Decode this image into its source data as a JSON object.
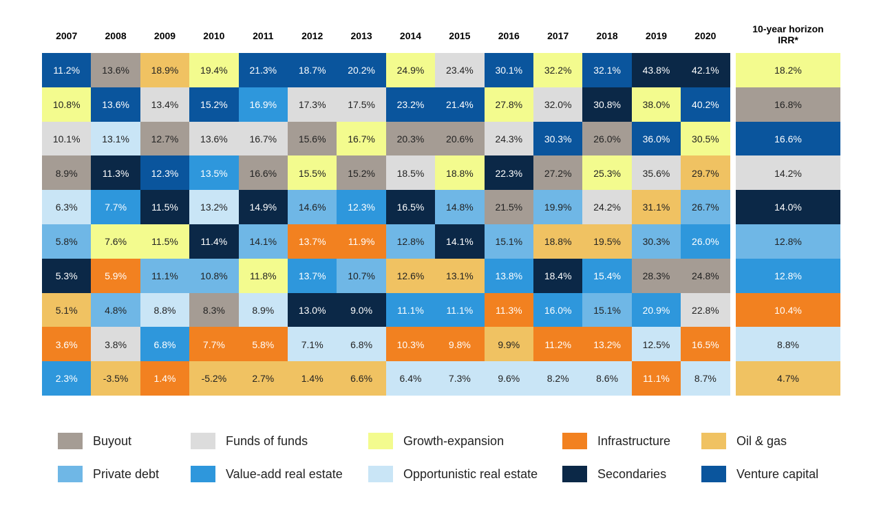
{
  "chart_data": {
    "type": "quilt",
    "categories": [
      "2007",
      "2008",
      "2009",
      "2010",
      "2011",
      "2012",
      "2013",
      "2014",
      "2015",
      "2016",
      "2017",
      "2018",
      "2019",
      "2020",
      "10-year horizon IRR*"
    ],
    "legend": [
      {
        "name": "Buyout",
        "color": "#a59c94"
      },
      {
        "name": "Funds of funds",
        "color": "#dcdcdc"
      },
      {
        "name": "Growth-expansion",
        "color": "#f3fb8e"
      },
      {
        "name": "Infrastructure",
        "color": "#f28120"
      },
      {
        "name": "Oil & gas",
        "color": "#f0c262"
      },
      {
        "name": "Private debt",
        "color": "#6fb7e6"
      },
      {
        "name": "Value-add real estate",
        "color": "#2e97dc"
      },
      {
        "name": "Opportunistic real estate",
        "color": "#c9e5f6"
      },
      {
        "name": "Secondaries",
        "color": "#0b2847"
      },
      {
        "name": "Venture capital",
        "color": "#0a559d"
      }
    ],
    "columns": [
      {
        "values": [
          11.2,
          10.8,
          10.1,
          8.9,
          6.3,
          5.8,
          5.3,
          5.1,
          3.6,
          2.3
        ],
        "value_labels": [
          "11.2%",
          "10.8%",
          "10.1%",
          "8.9%",
          "6.3%",
          "5.8%",
          "5.3%",
          "5.1%",
          "3.6%",
          "2.3%"
        ],
        "strategy": [
          9,
          2,
          1,
          0,
          7,
          5,
          8,
          4,
          3,
          6
        ]
      },
      {
        "values": [
          13.6,
          13.6,
          13.1,
          11.3,
          7.7,
          7.6,
          5.9,
          4.8,
          3.8,
          -3.5
        ],
        "value_labels": [
          "13.6%",
          "13.6%",
          "13.1%",
          "11.3%",
          "7.7%",
          "7.6%",
          "5.9%",
          "4.8%",
          "3.8%",
          "-3.5%"
        ],
        "strategy": [
          0,
          9,
          7,
          8,
          6,
          2,
          3,
          5,
          1,
          4
        ]
      },
      {
        "values": [
          18.9,
          13.4,
          12.7,
          12.3,
          11.5,
          11.5,
          11.1,
          8.8,
          6.8,
          1.4
        ],
        "value_labels": [
          "18.9%",
          "13.4%",
          "12.7%",
          "12.3%",
          "11.5%",
          "11.5%",
          "11.1%",
          "8.8%",
          "6.8%",
          "1.4%"
        ],
        "strategy": [
          4,
          1,
          0,
          9,
          8,
          2,
          5,
          7,
          6,
          3
        ]
      },
      {
        "values": [
          19.4,
          15.2,
          13.6,
          13.5,
          13.2,
          11.4,
          10.8,
          8.3,
          7.7,
          -5.2
        ],
        "value_labels": [
          "19.4%",
          "15.2%",
          "13.6%",
          "13.5%",
          "13.2%",
          "11.4%",
          "10.8%",
          "8.3%",
          "7.7%",
          "-5.2%"
        ],
        "strategy": [
          2,
          9,
          1,
          6,
          7,
          8,
          5,
          0,
          3,
          4
        ]
      },
      {
        "values": [
          21.3,
          16.9,
          16.7,
          16.6,
          14.9,
          14.1,
          11.8,
          8.9,
          5.8,
          2.7
        ],
        "value_labels": [
          "21.3%",
          "16.9%",
          "16.7%",
          "16.6%",
          "14.9%",
          "14.1%",
          "11.8%",
          "8.9%",
          "5.8%",
          "2.7%"
        ],
        "strategy": [
          9,
          6,
          1,
          0,
          8,
          5,
          2,
          7,
          3,
          4
        ]
      },
      {
        "values": [
          18.7,
          17.3,
          15.6,
          15.5,
          14.6,
          13.7,
          13.7,
          13.0,
          7.1,
          1.4
        ],
        "value_labels": [
          "18.7%",
          "17.3%",
          "15.6%",
          "15.5%",
          "14.6%",
          "13.7%",
          "13.7%",
          "13.0%",
          "7.1%",
          "1.4%"
        ],
        "strategy": [
          9,
          1,
          0,
          2,
          5,
          3,
          6,
          8,
          7,
          4
        ]
      },
      {
        "values": [
          20.2,
          17.5,
          16.7,
          15.2,
          12.3,
          11.9,
          10.7,
          9.0,
          6.8,
          6.6
        ],
        "value_labels": [
          "20.2%",
          "17.5%",
          "16.7%",
          "15.2%",
          "12.3%",
          "11.9%",
          "10.7%",
          "9.0%",
          "6.8%",
          "6.6%"
        ],
        "strategy": [
          9,
          1,
          2,
          0,
          6,
          3,
          5,
          8,
          7,
          4
        ]
      },
      {
        "values": [
          24.9,
          23.2,
          20.3,
          18.5,
          16.5,
          12.8,
          12.6,
          11.1,
          10.3,
          6.4
        ],
        "value_labels": [
          "24.9%",
          "23.2%",
          "20.3%",
          "18.5%",
          "16.5%",
          "12.8%",
          "12.6%",
          "11.1%",
          "10.3%",
          "6.4%"
        ],
        "strategy": [
          2,
          9,
          0,
          1,
          8,
          5,
          4,
          6,
          3,
          7
        ]
      },
      {
        "values": [
          23.4,
          21.4,
          20.6,
          18.8,
          14.8,
          14.1,
          13.1,
          11.1,
          9.8,
          7.3
        ],
        "value_labels": [
          "23.4%",
          "21.4%",
          "20.6%",
          "18.8%",
          "14.8%",
          "14.1%",
          "13.1%",
          "11.1%",
          "9.8%",
          "7.3%"
        ],
        "strategy": [
          1,
          9,
          0,
          2,
          5,
          8,
          4,
          6,
          3,
          7
        ]
      },
      {
        "values": [
          30.1,
          27.8,
          24.3,
          22.3,
          21.5,
          15.1,
          13.8,
          11.3,
          9.9,
          9.6
        ],
        "value_labels": [
          "30.1%",
          "27.8%",
          "24.3%",
          "22.3%",
          "21.5%",
          "15.1%",
          "13.8%",
          "11.3%",
          "9.9%",
          "9.6%"
        ],
        "strategy": [
          9,
          2,
          1,
          8,
          0,
          5,
          6,
          3,
          4,
          7
        ]
      },
      {
        "values": [
          32.2,
          32.0,
          30.3,
          27.2,
          19.9,
          18.8,
          18.4,
          16.0,
          11.2,
          8.2
        ],
        "value_labels": [
          "32.2%",
          "32.0%",
          "30.3%",
          "27.2%",
          "19.9%",
          "18.8%",
          "18.4%",
          "16.0%",
          "11.2%",
          "8.2%"
        ],
        "strategy": [
          2,
          1,
          9,
          0,
          5,
          4,
          8,
          6,
          3,
          7
        ]
      },
      {
        "values": [
          32.1,
          30.8,
          26.0,
          25.3,
          24.2,
          19.5,
          15.4,
          15.1,
          13.2,
          8.6
        ],
        "value_labels": [
          "32.1%",
          "30.8%",
          "26.0%",
          "25.3%",
          "24.2%",
          "19.5%",
          "15.4%",
          "15.1%",
          "13.2%",
          "8.6%"
        ],
        "strategy": [
          9,
          8,
          0,
          2,
          1,
          4,
          6,
          5,
          3,
          7
        ]
      },
      {
        "values": [
          43.8,
          38.0,
          36.0,
          35.6,
          31.1,
          30.3,
          28.3,
          20.9,
          12.5,
          11.1
        ],
        "value_labels": [
          "43.8%",
          "38.0%",
          "36.0%",
          "35.6%",
          "31.1%",
          "30.3%",
          "28.3%",
          "20.9%",
          "12.5%",
          "11.1%"
        ],
        "strategy": [
          8,
          2,
          9,
          1,
          4,
          5,
          0,
          6,
          7,
          3
        ]
      },
      {
        "values": [
          42.1,
          40.2,
          30.5,
          29.7,
          26.7,
          26.0,
          24.8,
          22.8,
          16.5,
          8.7
        ],
        "value_labels": [
          "42.1%",
          "40.2%",
          "30.5%",
          "29.7%",
          "26.7%",
          "26.0%",
          "24.8%",
          "22.8%",
          "16.5%",
          "8.7%"
        ],
        "strategy": [
          8,
          9,
          2,
          4,
          5,
          6,
          0,
          1,
          3,
          7
        ]
      },
      {
        "values": [
          18.2,
          16.8,
          16.6,
          14.2,
          14.0,
          12.8,
          12.8,
          10.4,
          8.8,
          4.7
        ],
        "value_labels": [
          "18.2%",
          "16.8%",
          "16.6%",
          "14.2%",
          "14.0%",
          "12.8%",
          "12.8%",
          "10.4%",
          "8.8%",
          "4.7%"
        ],
        "strategy": [
          2,
          0,
          9,
          1,
          8,
          5,
          6,
          3,
          7,
          4
        ]
      }
    ]
  }
}
